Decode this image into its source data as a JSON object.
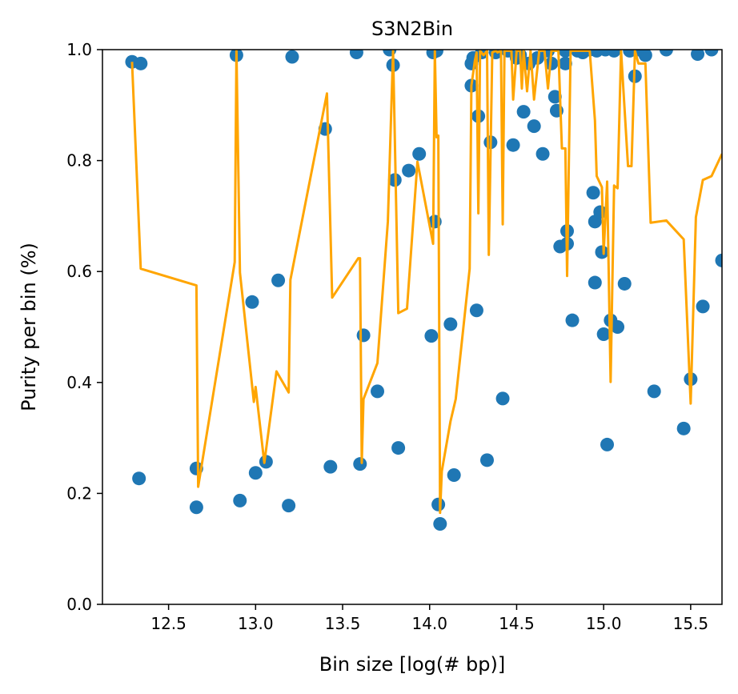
{
  "chart_data": {
    "type": "scatter",
    "title": "S3N2Bin",
    "xlabel": "Bin size [log(# bp)]",
    "ylabel": "Purity per bin (%)",
    "xlim": [
      12.12,
      15.68
    ],
    "ylim": [
      0.0,
      1.0
    ],
    "xticks": [
      "12.5",
      "13.0",
      "13.5",
      "14.0",
      "14.5",
      "15.0",
      "15.5"
    ],
    "xtick_values": [
      12.5,
      13.0,
      13.5,
      14.0,
      14.5,
      15.0,
      15.5
    ],
    "yticks": [
      "0.0",
      "0.2",
      "0.4",
      "0.6",
      "0.8",
      "1.0"
    ],
    "ytick_values": [
      0.0,
      0.2,
      0.4,
      0.6,
      0.8,
      1.0
    ],
    "grid": false,
    "colors": {
      "points": "#1f77b4",
      "line": "#ffa500"
    },
    "series": [
      {
        "kind": "scatter",
        "x": [
          12.29,
          12.34,
          12.33,
          12.66,
          12.66,
          12.89,
          12.91,
          12.98,
          13.0,
          13.06,
          13.13,
          13.19,
          13.21,
          13.4,
          13.43,
          13.58,
          13.6,
          13.62,
          13.7,
          13.77,
          13.79,
          13.8,
          13.82,
          13.88,
          13.94,
          14.01,
          14.02,
          14.03,
          14.04,
          14.05,
          14.06,
          14.12,
          14.14,
          14.24,
          14.24,
          14.25,
          14.27,
          14.28,
          14.3,
          14.33,
          14.35,
          14.38,
          14.42,
          14.45,
          14.48,
          14.5,
          14.52,
          14.54,
          14.57,
          14.6,
          14.62,
          14.65,
          14.68,
          14.7,
          14.72,
          14.73,
          14.75,
          14.78,
          14.78,
          14.79,
          14.79,
          14.82,
          14.85,
          14.88,
          14.92,
          14.94,
          14.95,
          14.95,
          14.96,
          14.98,
          14.99,
          15.0,
          15.01,
          15.02,
          15.04,
          15.06,
          15.08,
          15.12,
          15.15,
          15.18,
          15.2,
          15.24,
          15.29,
          15.36,
          15.46,
          15.5,
          15.54,
          15.57,
          15.62,
          15.68
        ],
        "y": [
          0.978,
          0.975,
          0.227,
          0.245,
          0.175,
          0.99,
          0.187,
          0.545,
          0.237,
          0.257,
          0.584,
          0.178,
          0.987,
          0.857,
          0.248,
          0.995,
          0.253,
          0.485,
          0.384,
          1.0,
          0.972,
          0.765,
          0.282,
          0.782,
          0.812,
          0.484,
          0.995,
          0.69,
          0.998,
          0.18,
          0.145,
          0.505,
          0.233,
          0.935,
          0.975,
          0.985,
          0.53,
          0.88,
          0.995,
          0.26,
          0.833,
          0.995,
          0.371,
          0.998,
          0.828,
          0.985,
          0.99,
          0.888,
          0.975,
          0.862,
          0.985,
          0.812,
          0.998,
          0.975,
          0.915,
          0.89,
          0.645,
          0.998,
          0.975,
          0.65,
          0.673,
          0.512,
          0.998,
          0.995,
          1.0,
          0.742,
          0.69,
          0.58,
          0.998,
          0.707,
          0.635,
          0.487,
          1.0,
          0.288,
          0.512,
          0.998,
          0.5,
          0.578,
          0.998,
          0.952,
          1.0,
          0.99,
          0.384,
          1.0,
          0.317,
          0.406,
          0.992,
          0.537,
          1.0,
          0.62
        ]
      },
      {
        "kind": "line",
        "x": [
          12.29,
          12.34,
          12.66,
          12.67,
          12.88,
          12.89,
          12.91,
          12.99,
          13.0,
          13.05,
          13.12,
          13.19,
          13.2,
          13.41,
          13.44,
          13.59,
          13.6,
          13.61,
          13.62,
          13.7,
          13.76,
          13.79,
          13.82,
          13.87,
          13.93,
          14.02,
          14.03,
          14.04,
          14.05,
          14.06,
          14.07,
          14.12,
          14.15,
          14.23,
          14.24,
          14.26,
          14.27,
          14.28,
          14.29,
          14.31,
          14.33,
          14.34,
          14.36,
          14.38,
          14.39,
          14.41,
          14.42,
          14.43,
          14.45,
          14.47,
          14.48,
          14.5,
          14.52,
          14.53,
          14.54,
          14.56,
          14.58,
          14.6,
          14.63,
          14.66,
          14.68,
          14.7,
          14.72,
          14.74,
          14.76,
          14.78,
          14.79,
          14.81,
          14.84,
          14.88,
          14.92,
          14.95,
          14.96,
          14.99,
          15.0,
          15.02,
          15.04,
          15.06,
          15.08,
          15.1,
          15.14,
          15.16,
          15.18,
          15.2,
          15.24,
          15.27,
          15.36,
          15.46,
          15.5,
          15.53,
          15.57,
          15.62,
          15.68
        ],
        "y": [
          0.978,
          0.605,
          0.575,
          0.212,
          0.617,
          0.998,
          0.598,
          0.365,
          0.392,
          0.255,
          0.42,
          0.382,
          0.585,
          0.921,
          0.553,
          0.624,
          0.624,
          0.255,
          0.37,
          0.435,
          0.69,
          0.998,
          0.525,
          0.533,
          0.798,
          0.65,
          0.998,
          0.842,
          0.845,
          0.165,
          0.24,
          0.33,
          0.37,
          0.605,
          0.935,
          0.98,
          0.995,
          0.705,
          0.998,
          0.99,
          0.998,
          0.63,
          0.995,
          0.998,
          0.995,
          0.998,
          0.685,
          0.998,
          0.998,
          0.998,
          0.91,
          0.998,
          0.998,
          0.93,
          0.998,
          0.925,
          0.998,
          0.91,
          0.998,
          0.998,
          0.93,
          0.998,
          0.998,
          0.998,
          0.822,
          0.822,
          0.592,
          0.998,
          0.998,
          0.998,
          0.998,
          0.872,
          0.772,
          0.752,
          0.632,
          0.762,
          0.401,
          0.755,
          0.75,
          0.998,
          0.79,
          0.79,
          0.998,
          0.975,
          0.975,
          0.688,
          0.692,
          0.658,
          0.362,
          0.698,
          0.765,
          0.772,
          0.812
        ]
      }
    ]
  }
}
